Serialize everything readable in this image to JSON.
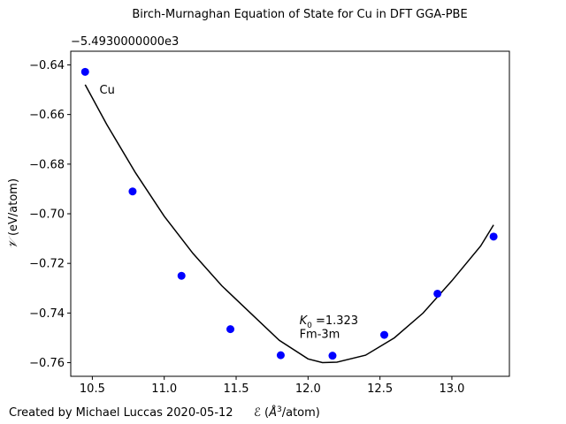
{
  "chart_data": {
    "type": "scatter",
    "title": "Birch-Murnaghan Equation of State for Cu in DFT GGA-PBE",
    "offset_label": "−5.4930000000e3",
    "xlabel": "𝒱 (Å³/atom)",
    "ylabel": "𝒱 (eV/atom)",
    "credit": "Created by Michael Luccas 2020-05-12",
    "xlim": [
      10.35,
      13.4
    ],
    "ylim": [
      -0.7655,
      -0.6345
    ],
    "x_ticks": [
      {
        "value": 10.5,
        "label": "10.5"
      },
      {
        "value": 11.0,
        "label": "11.0"
      },
      {
        "value": 11.5,
        "label": "11.5"
      },
      {
        "value": 12.0,
        "label": "12.0"
      },
      {
        "value": 12.5,
        "label": "12.5"
      },
      {
        "value": 13.0,
        "label": "13.0"
      }
    ],
    "y_ticks": [
      {
        "value": -0.64,
        "label": "−0.64"
      },
      {
        "value": -0.66,
        "label": "−0.66"
      },
      {
        "value": -0.68,
        "label": "−0.68"
      },
      {
        "value": -0.7,
        "label": "−0.70"
      },
      {
        "value": -0.72,
        "label": "−0.72"
      },
      {
        "value": -0.74,
        "label": "−0.74"
      },
      {
        "value": -0.76,
        "label": "−0.76"
      }
    ],
    "grid": false,
    "points": {
      "color": "#0000ff",
      "x": [
        10.45,
        10.78,
        11.12,
        11.46,
        11.81,
        12.17,
        12.53,
        12.9,
        13.29
      ],
      "y": [
        -0.6428,
        -0.691,
        -0.725,
        -0.7465,
        -0.757,
        -0.7572,
        -0.7488,
        -0.7322,
        -0.7092
      ]
    },
    "fit_curve": {
      "color": "#000000",
      "x": [
        10.45,
        10.6,
        10.8,
        11.0,
        11.2,
        11.4,
        11.6,
        11.8,
        12.0,
        12.1,
        12.2,
        12.4,
        12.6,
        12.8,
        13.0,
        13.2,
        13.29
      ],
      "y": [
        -0.648,
        -0.664,
        -0.6835,
        -0.701,
        -0.716,
        -0.729,
        -0.74,
        -0.751,
        -0.7585,
        -0.76,
        -0.7598,
        -0.757,
        -0.75,
        -0.74,
        -0.727,
        -0.713,
        -0.7045
      ]
    },
    "annotations": [
      {
        "text": "Cu",
        "x": 10.55,
        "y": -0.6515
      },
      {
        "text": "K₀ =1.323",
        "x": 11.94,
        "y": -0.7445
      },
      {
        "text": "Fm-3m",
        "x": 11.94,
        "y": -0.75
      }
    ]
  }
}
